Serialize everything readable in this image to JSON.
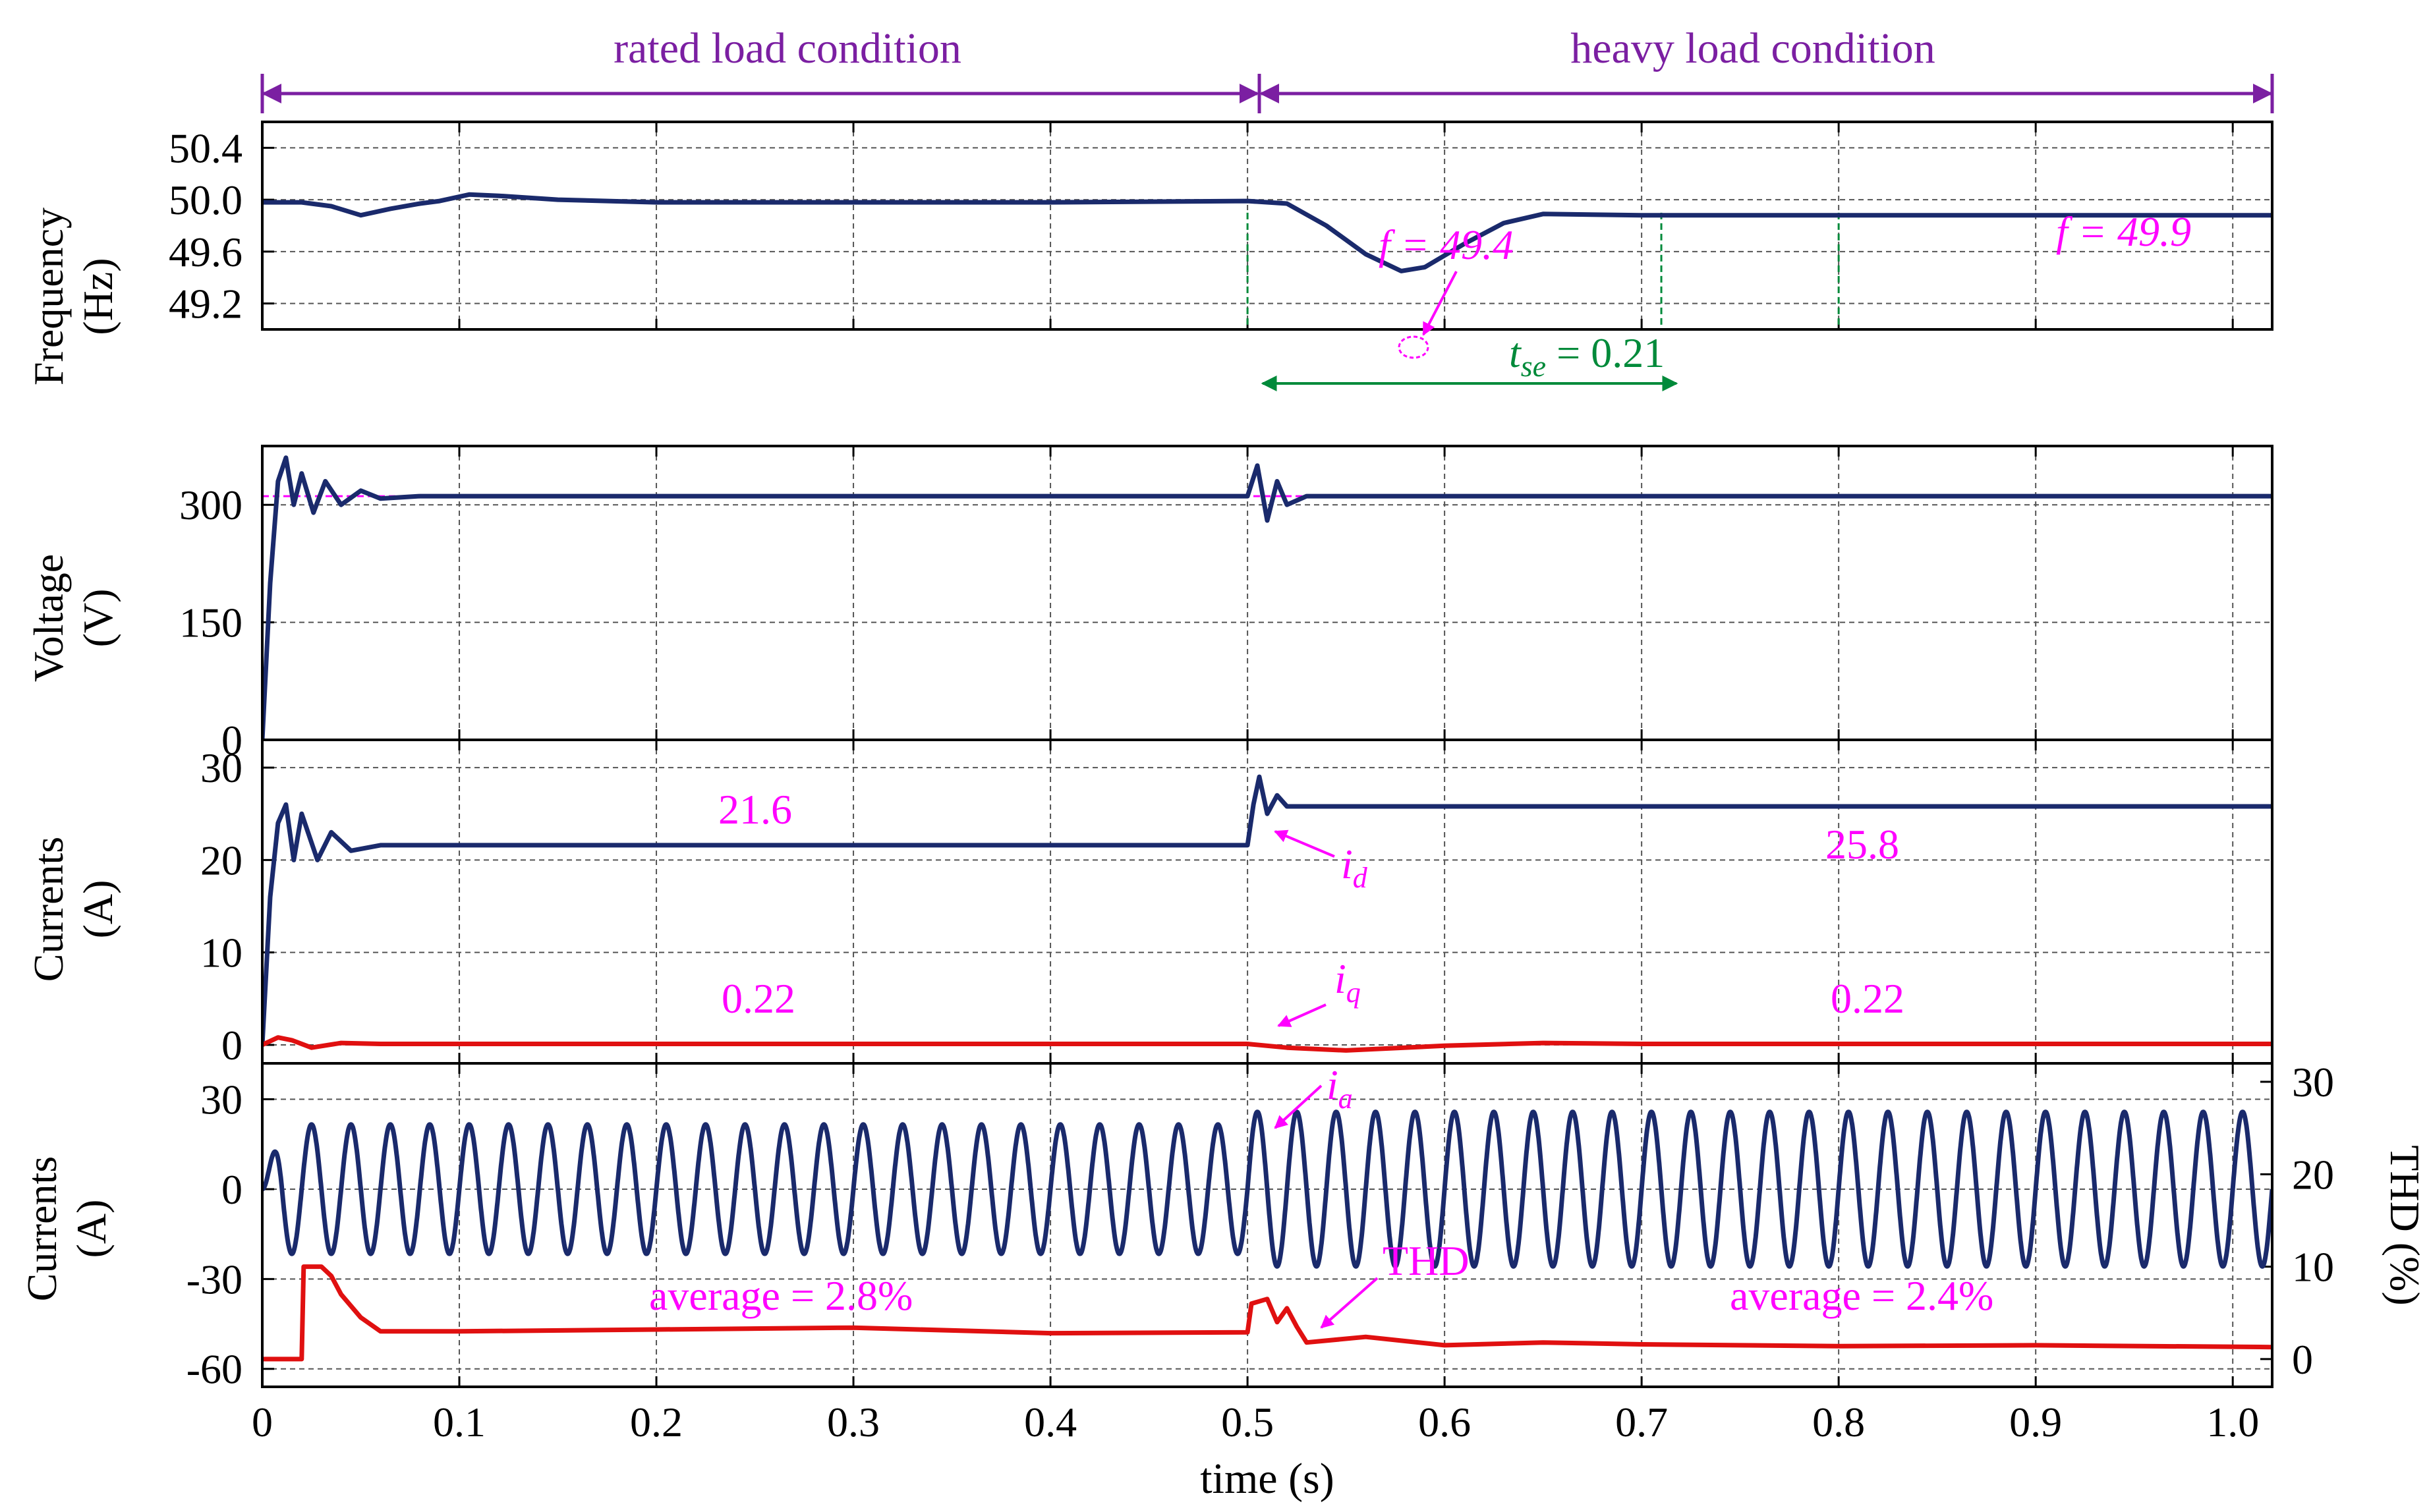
{
  "colors": {
    "blue": "#1a2a6c",
    "red": "#e01010",
    "magenta": "#ff00ff",
    "purple": "#7b1fa2",
    "green": "#008a3a",
    "grid": "#555555"
  },
  "chart_data": {
    "type": "line",
    "xlabel": "time (s)",
    "xlim": [
      0,
      1.02
    ],
    "xticks": [
      "0",
      "0.1",
      "0.2",
      "0.3",
      "0.4",
      "0.5",
      "0.6",
      "0.7",
      "0.8",
      "0.9",
      "1.0"
    ],
    "xtick_values": [
      0,
      0.1,
      0.2,
      0.3,
      0.4,
      0.5,
      0.6,
      0.7,
      0.8,
      0.9,
      1.0
    ],
    "regions": [
      {
        "label": "rated load condition",
        "x": [
          0,
          0.5
        ]
      },
      {
        "label": "heavy load condition",
        "x": [
          0.5,
          1.02
        ]
      }
    ],
    "panels": [
      {
        "name": "frequency",
        "ylabel": [
          "Frequency",
          "(Hz)"
        ],
        "ylim": [
          49.0,
          50.6
        ],
        "yticks": [
          "50.4",
          "50.0",
          "49.6",
          "49.2"
        ],
        "ytick_values": [
          50.4,
          50.0,
          49.6,
          49.2
        ],
        "series": [
          {
            "name": "f",
            "color": "blue",
            "points": [
              [
                0,
                49.98
              ],
              [
                0.02,
                49.98
              ],
              [
                0.035,
                49.95
              ],
              [
                0.05,
                49.88
              ],
              [
                0.065,
                49.93
              ],
              [
                0.08,
                49.97
              ],
              [
                0.09,
                49.99
              ],
              [
                0.105,
                50.04
              ],
              [
                0.12,
                50.03
              ],
              [
                0.15,
                50.0
              ],
              [
                0.2,
                49.98
              ],
              [
                0.3,
                49.98
              ],
              [
                0.4,
                49.98
              ],
              [
                0.5,
                49.99
              ],
              [
                0.52,
                49.97
              ],
              [
                0.54,
                49.8
              ],
              [
                0.56,
                49.58
              ],
              [
                0.578,
                49.45
              ],
              [
                0.59,
                49.48
              ],
              [
                0.61,
                49.66
              ],
              [
                0.63,
                49.82
              ],
              [
                0.65,
                49.89
              ],
              [
                0.7,
                49.88
              ],
              [
                0.8,
                49.88
              ],
              [
                0.9,
                49.88
              ],
              [
                1.02,
                49.88
              ]
            ]
          }
        ],
        "annotations": [
          {
            "text": "f = 49.4"
          },
          {
            "text": "t",
            "sub": "se",
            "rest": " = 0.21"
          },
          {
            "text": "f = 49.9"
          }
        ],
        "settling_markers": [
          0.5,
          0.71,
          0.8
        ]
      },
      {
        "name": "voltage",
        "ylabel": [
          "Voltage",
          "(V)"
        ],
        "ylim": [
          0,
          375
        ],
        "yticks": [
          "300",
          "150",
          "0"
        ],
        "ytick_values": [
          300,
          150,
          0
        ],
        "reference": 311,
        "series": [
          {
            "name": "v",
            "color": "blue",
            "points": [
              [
                0,
                0
              ],
              [
                0.004,
                200
              ],
              [
                0.008,
                330
              ],
              [
                0.012,
                360
              ],
              [
                0.016,
                300
              ],
              [
                0.02,
                340
              ],
              [
                0.026,
                290
              ],
              [
                0.032,
                330
              ],
              [
                0.04,
                300
              ],
              [
                0.05,
                318
              ],
              [
                0.06,
                308
              ],
              [
                0.08,
                311
              ],
              [
                0.5,
                311
              ],
              [
                0.505,
                350
              ],
              [
                0.51,
                280
              ],
              [
                0.515,
                330
              ],
              [
                0.52,
                300
              ],
              [
                0.53,
                311
              ],
              [
                1.02,
                311
              ]
            ]
          }
        ]
      },
      {
        "name": "currents_dq",
        "ylabel": [
          "Currents",
          "(A)"
        ],
        "ylim": [
          -2,
          33
        ],
        "yticks": [
          "30",
          "20",
          "10",
          "0"
        ],
        "ytick_values": [
          30,
          20,
          10,
          0
        ],
        "series": [
          {
            "name": "i_d",
            "color": "blue",
            "points": [
              [
                0,
                0
              ],
              [
                0.004,
                16
              ],
              [
                0.008,
                24
              ],
              [
                0.012,
                26
              ],
              [
                0.016,
                20
              ],
              [
                0.02,
                25
              ],
              [
                0.028,
                20
              ],
              [
                0.035,
                23
              ],
              [
                0.045,
                21
              ],
              [
                0.06,
                21.6
              ],
              [
                0.5,
                21.6
              ],
              [
                0.503,
                26
              ],
              [
                0.506,
                29
              ],
              [
                0.51,
                25
              ],
              [
                0.515,
                27
              ],
              [
                0.52,
                25.8
              ],
              [
                1.02,
                25.8
              ]
            ]
          },
          {
            "name": "i_q",
            "color": "red",
            "points": [
              [
                0,
                0
              ],
              [
                0.008,
                0.8
              ],
              [
                0.015,
                0.5
              ],
              [
                0.025,
                -0.3
              ],
              [
                0.04,
                0.2
              ],
              [
                0.06,
                0.1
              ],
              [
                0.5,
                0.1
              ],
              [
                0.52,
                -0.3
              ],
              [
                0.55,
                -0.6
              ],
              [
                0.6,
                -0.1
              ],
              [
                0.65,
                0.2
              ],
              [
                0.7,
                0.1
              ],
              [
                1.02,
                0.1
              ]
            ]
          }
        ],
        "annotations": [
          {
            "text": "21.6"
          },
          {
            "text": "25.8"
          },
          {
            "text": "0.22"
          },
          {
            "text": "0.22"
          },
          {
            "text": "i",
            "sub": "d"
          },
          {
            "text": "i",
            "sub": "q"
          }
        ]
      },
      {
        "name": "currents_thd",
        "ylabel": [
          "Currents",
          "(A)"
        ],
        "ylim": [
          -66,
          42
        ],
        "yticks": [
          "30",
          "0",
          "-30",
          "-60"
        ],
        "ytick_values": [
          30,
          0,
          -30,
          -60
        ],
        "right_ylabel": "THD (%)",
        "right_ylim": [
          -3,
          32
        ],
        "right_yticks": [
          "30",
          "20",
          "10",
          "0"
        ],
        "right_ytick_values": [
          30,
          20,
          10,
          0
        ],
        "series": [
          {
            "name": "i_a",
            "color": "blue",
            "kind": "sine",
            "frequency_hz": 50,
            "amplitude_before": 21.6,
            "amplitude_after": 25.8,
            "switch_time": 0.5
          },
          {
            "name": "THD",
            "color": "red",
            "axis": "right",
            "points": [
              [
                0,
                0
              ],
              [
                0.02,
                0
              ],
              [
                0.021,
                10
              ],
              [
                0.03,
                10
              ],
              [
                0.035,
                9
              ],
              [
                0.04,
                7
              ],
              [
                0.05,
                4.5
              ],
              [
                0.06,
                3
              ],
              [
                0.1,
                3
              ],
              [
                0.2,
                3.2
              ],
              [
                0.3,
                3.4
              ],
              [
                0.4,
                2.8
              ],
              [
                0.5,
                2.9
              ],
              [
                0.502,
                6
              ],
              [
                0.51,
                6.5
              ],
              [
                0.515,
                4
              ],
              [
                0.52,
                5.5
              ],
              [
                0.525,
                3.5
              ],
              [
                0.53,
                1.8
              ],
              [
                0.56,
                2.4
              ],
              [
                0.6,
                1.5
              ],
              [
                0.65,
                1.8
              ],
              [
                0.7,
                1.6
              ],
              [
                0.8,
                1.4
              ],
              [
                0.9,
                1.5
              ],
              [
                1.02,
                1.3
              ]
            ]
          }
        ],
        "annotations": [
          {
            "text": "average = 2.8%"
          },
          {
            "text": "average = 2.4%"
          },
          {
            "text": "THD"
          },
          {
            "text": "i",
            "sub": "a"
          }
        ]
      }
    ]
  }
}
